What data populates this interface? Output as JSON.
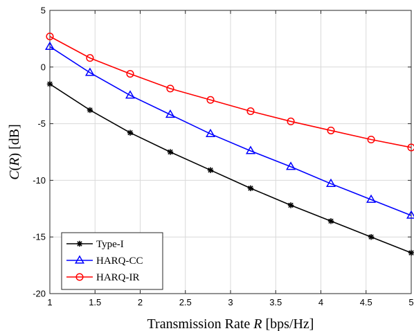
{
  "chart_data": {
    "type": "line",
    "xlabel_text": "Transmission Rate ",
    "xlabel_var": "R",
    "xlabel_unit": " [bps/Hz]",
    "ylabel_fn": "C",
    "ylabel_open": "(",
    "ylabel_var": "R",
    "ylabel_close": ")",
    "ylabel_unit": " [dB]",
    "xlim": [
      1,
      5
    ],
    "ylim": [
      -20,
      5
    ],
    "x_ticks": [
      1,
      1.5,
      2,
      2.5,
      3,
      3.5,
      4,
      4.5,
      5
    ],
    "y_ticks": [
      -20,
      -15,
      -10,
      -5,
      0,
      5
    ],
    "x_tick_labels": [
      "1",
      "1.5",
      "2",
      "2.5",
      "3",
      "3.5",
      "4",
      "4.5",
      "5"
    ],
    "y_tick_labels": [
      "-20",
      "-15",
      "-10",
      "-5",
      "0",
      "5"
    ],
    "grid": true,
    "legend_position": "bottom-left",
    "x": [
      1.0,
      1.444,
      1.889,
      2.333,
      2.778,
      3.222,
      3.667,
      4.111,
      4.556,
      5.0
    ],
    "series": [
      {
        "name": "Type-I",
        "color": "#000000",
        "marker": "asterisk",
        "values": [
          -1.5,
          -3.8,
          -5.8,
          -7.5,
          -9.1,
          -10.7,
          -12.2,
          -13.6,
          -15.0,
          -16.4
        ]
      },
      {
        "name": "HARQ-CC",
        "color": "#0000ff",
        "marker": "triangle",
        "values": [
          1.8,
          -0.5,
          -2.5,
          -4.2,
          -5.9,
          -7.4,
          -8.8,
          -10.3,
          -11.7,
          -13.1
        ]
      },
      {
        "name": "HARQ-IR",
        "color": "#ff0000",
        "marker": "circle",
        "values": [
          2.7,
          0.8,
          -0.6,
          -1.9,
          -2.9,
          -3.9,
          -4.8,
          -5.6,
          -6.4,
          -7.1
        ]
      }
    ]
  }
}
